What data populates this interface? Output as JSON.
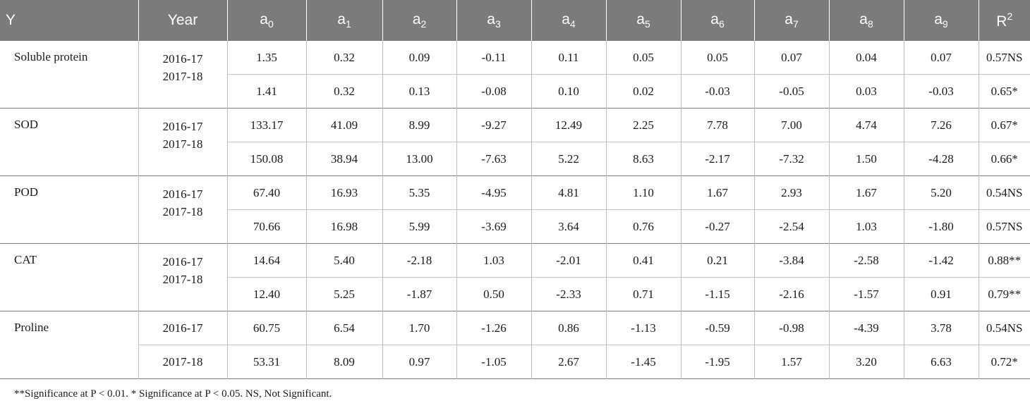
{
  "table": {
    "header": {
      "y": "Y",
      "year": "Year",
      "coeffs": [
        {
          "base": "a",
          "sub": "0"
        },
        {
          "base": "a",
          "sub": "1"
        },
        {
          "base": "a",
          "sub": "2"
        },
        {
          "base": "a",
          "sub": "3"
        },
        {
          "base": "a",
          "sub": "4"
        },
        {
          "base": "a",
          "sub": "5"
        },
        {
          "base": "a",
          "sub": "6"
        },
        {
          "base": "a",
          "sub": "7"
        },
        {
          "base": "a",
          "sub": "8"
        },
        {
          "base": "a",
          "sub": "9"
        }
      ],
      "r2": {
        "base": "R",
        "sup": "2"
      }
    },
    "groups": [
      {
        "y": "Soluble protein",
        "years": [
          "2016-17",
          "2017-18"
        ],
        "rows": [
          {
            "values": [
              "1.35",
              "0.32",
              "0.09",
              "-0.11",
              "0.11",
              "0.05",
              "0.05",
              "0.07",
              "0.04",
              "0.07"
            ],
            "r2": "0.57NS"
          },
          {
            "values": [
              "1.41",
              "0.32",
              "0.13",
              "-0.08",
              "0.10",
              "0.02",
              "-0.03",
              "-0.05",
              "0.03",
              "-0.03"
            ],
            "r2": "0.65*"
          }
        ]
      },
      {
        "y": "SOD",
        "years": [
          "2016-17",
          "2017-18"
        ],
        "rows": [
          {
            "values": [
              "133.17",
              "41.09",
              "8.99",
              "-9.27",
              "12.49",
              "2.25",
              "7.78",
              "7.00",
              "4.74",
              "7.26"
            ],
            "r2": "0.67*"
          },
          {
            "values": [
              "150.08",
              "38.94",
              "13.00",
              "-7.63",
              "5.22",
              "8.63",
              "-2.17",
              "-7.32",
              "1.50",
              "-4.28"
            ],
            "r2": "0.66*"
          }
        ]
      },
      {
        "y": "POD",
        "years": [
          "2016-17",
          "2017-18"
        ],
        "rows": [
          {
            "values": [
              "67.40",
              "16.93",
              "5.35",
              "-4.95",
              "4.81",
              "1.10",
              "1.67",
              "2.93",
              "1.67",
              "5.20"
            ],
            "r2": "0.54NS"
          },
          {
            "values": [
              "70.66",
              "16.98",
              "5.99",
              "-3.69",
              "3.64",
              "0.76",
              "-0.27",
              "-2.54",
              "1.03",
              "-1.80"
            ],
            "r2": "0.57NS"
          }
        ]
      },
      {
        "y": "CAT",
        "years": [
          "2016-17",
          "2017-18"
        ],
        "rows": [
          {
            "values": [
              "14.64",
              "5.40",
              "-2.18",
              "1.03",
              "-2.01",
              "0.41",
              "0.21",
              "-3.84",
              "-2.58",
              "-1.42"
            ],
            "r2": "0.88**"
          },
          {
            "values": [
              "12.40",
              "5.25",
              "-1.87",
              "0.50",
              "-2.33",
              "0.71",
              "-1.15",
              "-2.16",
              "-1.57",
              "0.91"
            ],
            "r2": "0.79**"
          }
        ]
      },
      {
        "y": "Proline",
        "years": [
          "2016-17",
          "2017-18"
        ],
        "rows": [
          {
            "values": [
              "60.75",
              "6.54",
              "1.70",
              "-1.26",
              "0.86",
              "-1.13",
              "-0.59",
              "-0.98",
              "-4.39",
              "3.78"
            ],
            "r2": "0.54NS"
          },
          {
            "values": [
              "53.31",
              "8.09",
              "0.97",
              "-1.05",
              "2.67",
              "-1.45",
              "-1.95",
              "1.57",
              "3.20",
              "6.63"
            ],
            "r2": "0.72*"
          }
        ]
      }
    ]
  },
  "footnote": "**Significance at P < 0.01. * Significance at P < 0.05. NS, Not Significant."
}
